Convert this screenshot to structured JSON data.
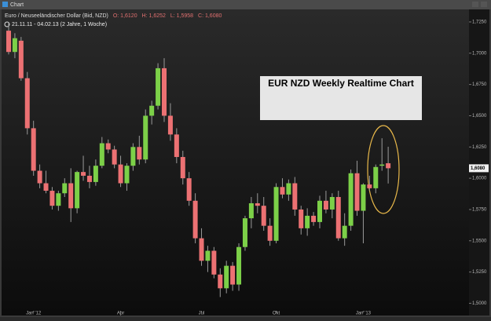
{
  "window_title": "Chart",
  "chart_data": {
    "type": "candlestick",
    "title": "Euro / Neuseeländischer Dollar (Bid, NZD)",
    "ohlc_labels": [
      "O: 1,6120",
      "H: 1,6252",
      "L: 1,5958",
      "C: 1,6080"
    ],
    "subtitle": "21.11.11 - 04.02.13 (2 Jahre, 1 Woche)",
    "annotation": "EUR NZD Weekly Realtime Chart",
    "categories": [
      null,
      null,
      null,
      null,
      "Jan '12",
      null,
      null,
      null,
      null,
      null,
      null,
      null,
      null,
      null,
      null,
      null,
      null,
      null,
      "Apr",
      null,
      null,
      null,
      null,
      null,
      null,
      null,
      null,
      null,
      null,
      null,
      null,
      "Jul",
      null,
      null,
      null,
      null,
      null,
      null,
      null,
      null,
      null,
      null,
      null,
      "Okt",
      null,
      null,
      null,
      null,
      null,
      null,
      null,
      null,
      null,
      null,
      null,
      null,
      null,
      "Jan '13",
      null,
      null,
      null,
      null
    ],
    "open": [
      1.718,
      1.701,
      1.71,
      1.68,
      1.64,
      1.606,
      1.596,
      1.59,
      1.578,
      1.588,
      1.596,
      1.576,
      1.605,
      1.602,
      1.597,
      1.61,
      1.628,
      1.623,
      1.611,
      1.596,
      1.61,
      1.625,
      1.615,
      1.65,
      1.658,
      1.688,
      1.65,
      1.635,
      1.617,
      1.6,
      1.582,
      1.552,
      1.534,
      1.542,
      1.523,
      1.512,
      1.53,
      1.515,
      1.545,
      1.568,
      1.58,
      1.578,
      1.562,
      1.55,
      1.593,
      1.587,
      1.596,
      1.575,
      1.56,
      1.57,
      1.565,
      1.582,
      1.575,
      1.585,
      1.552,
      1.562,
      1.604,
      1.574,
      1.595,
      1.592,
      1.61,
      1.612
    ],
    "high": [
      1.7245,
      1.716,
      1.713,
      1.685,
      1.646,
      1.611,
      1.606,
      1.593,
      1.59,
      1.6,
      1.608,
      1.606,
      1.618,
      1.61,
      1.615,
      1.633,
      1.631,
      1.626,
      1.618,
      1.612,
      1.628,
      1.634,
      1.655,
      1.662,
      1.692,
      1.696,
      1.66,
      1.64,
      1.622,
      1.605,
      1.588,
      1.56,
      1.546,
      1.545,
      1.528,
      1.534,
      1.533,
      1.548,
      1.57,
      1.585,
      1.588,
      1.585,
      1.568,
      1.596,
      1.6,
      1.599,
      1.601,
      1.578,
      1.576,
      1.573,
      1.586,
      1.59,
      1.588,
      1.59,
      1.572,
      1.607,
      1.614,
      1.596,
      1.602,
      1.611,
      1.632,
      1.6252
    ],
    "low": [
      1.699,
      1.696,
      1.678,
      1.635,
      1.602,
      1.592,
      1.588,
      1.575,
      1.574,
      1.585,
      1.565,
      1.572,
      1.598,
      1.592,
      1.594,
      1.608,
      1.62,
      1.608,
      1.593,
      1.59,
      1.606,
      1.611,
      1.612,
      1.643,
      1.655,
      1.645,
      1.63,
      1.612,
      1.595,
      1.578,
      1.548,
      1.53,
      1.525,
      1.52,
      1.505,
      1.508,
      1.51,
      1.51,
      1.542,
      1.56,
      1.572,
      1.558,
      1.546,
      1.548,
      1.584,
      1.582,
      1.57,
      1.555,
      1.554,
      1.562,
      1.56,
      1.572,
      1.568,
      1.55,
      1.546,
      1.558,
      1.57,
      1.548,
      1.59,
      1.588,
      1.606,
      1.5958
    ],
    "close": [
      1.701,
      1.712,
      1.68,
      1.64,
      1.606,
      1.596,
      1.59,
      1.578,
      1.588,
      1.596,
      1.576,
      1.605,
      1.602,
      1.597,
      1.61,
      1.628,
      1.623,
      1.611,
      1.596,
      1.61,
      1.625,
      1.615,
      1.65,
      1.658,
      1.688,
      1.65,
      1.635,
      1.617,
      1.6,
      1.582,
      1.552,
      1.534,
      1.542,
      1.523,
      1.512,
      1.53,
      1.515,
      1.545,
      1.568,
      1.58,
      1.578,
      1.562,
      1.55,
      1.593,
      1.587,
      1.596,
      1.575,
      1.56,
      1.57,
      1.565,
      1.582,
      1.575,
      1.585,
      1.552,
      1.562,
      1.604,
      1.574,
      1.595,
      1.592,
      1.609,
      1.611,
      1.608
    ],
    "up_color": "#7cd048",
    "down_color": "#ec7173",
    "last_price": {
      "value": 1.608,
      "label": "1,6080"
    },
    "ylim": [
      1.494,
      1.73
    ],
    "yticks": [
      {
        "value": 1.5,
        "label": "1,5000"
      },
      {
        "value": 1.525,
        "label": "1,5250"
      },
      {
        "value": 1.55,
        "label": "1,5500"
      },
      {
        "value": 1.575,
        "label": "1,5750"
      },
      {
        "value": 1.6,
        "label": "1,6000"
      },
      {
        "value": 1.625,
        "label": "1,6250"
      },
      {
        "value": 1.65,
        "label": "1,6500"
      },
      {
        "value": 1.675,
        "label": "1,6750"
      },
      {
        "value": 1.7,
        "label": "1,7000"
      },
      {
        "value": 1.725,
        "label": "1,7250"
      }
    ],
    "grid": false
  }
}
